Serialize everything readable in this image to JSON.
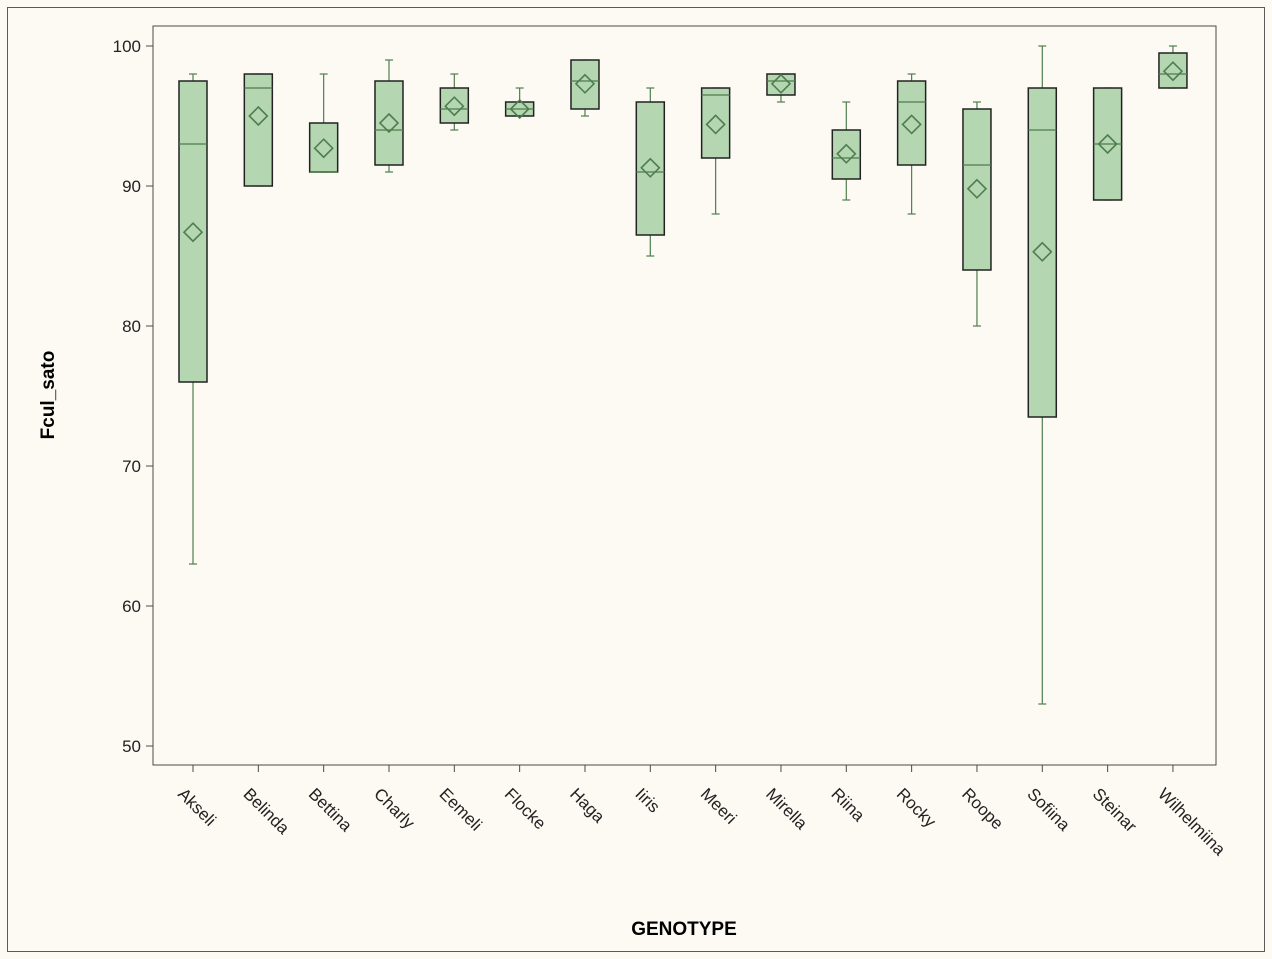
{
  "chart_data": {
    "type": "box",
    "xlabel": "GENOTYPE",
    "ylabel": "Fcul_sato",
    "ylim": [
      50,
      100
    ],
    "y_ticks": [
      "50",
      "60",
      "70",
      "80",
      "90",
      "100"
    ],
    "grid": false,
    "legend": "none",
    "colors": {
      "box_fill": "#b4d6b1",
      "box_stroke": "#222222",
      "whisker": "#4e7e4e",
      "mean_marker": "#4e7e4e",
      "background": "#fdfaf3"
    },
    "categories": [
      "Akseli",
      "Belinda",
      "Bettina",
      "Charly",
      "Eemeli",
      "Flocke",
      "Haga",
      "Iiris",
      "Meeri",
      "Mirella",
      "Riina",
      "Rocky",
      "Roope",
      "Sofiina",
      "Steinar",
      "Wilhelmiina"
    ],
    "boxes": [
      {
        "min": 63,
        "q1": 76,
        "median": 93,
        "q3": 97.5,
        "max": 98,
        "mean": 86.7
      },
      {
        "min": 90,
        "q1": 90,
        "median": 97,
        "q3": 98,
        "max": 98,
        "mean": 95
      },
      {
        "min": 91,
        "q1": 91,
        "median": 91,
        "q3": 94.5,
        "max": 98,
        "mean": 92.7
      },
      {
        "min": 91,
        "q1": 91.5,
        "median": 94,
        "q3": 97.5,
        "max": 99,
        "mean": 94.5
      },
      {
        "min": 94,
        "q1": 94.5,
        "median": 95.5,
        "q3": 97,
        "max": 98,
        "mean": 95.7
      },
      {
        "min": 95,
        "q1": 95,
        "median": 95.5,
        "q3": 96,
        "max": 97,
        "mean": 95.5
      },
      {
        "min": 95,
        "q1": 95.5,
        "median": 97.5,
        "q3": 99,
        "max": 99,
        "mean": 97.3
      },
      {
        "min": 85,
        "q1": 86.5,
        "median": 91,
        "q3": 96,
        "max": 97,
        "mean": 91.3
      },
      {
        "min": 88,
        "q1": 92,
        "median": 96.5,
        "q3": 97,
        "max": 97,
        "mean": 94.4
      },
      {
        "min": 96,
        "q1": 96.5,
        "median": 97.5,
        "q3": 98,
        "max": 98,
        "mean": 97.3
      },
      {
        "min": 89,
        "q1": 90.5,
        "median": 92,
        "q3": 94,
        "max": 96,
        "mean": 92.3
      },
      {
        "min": 88,
        "q1": 91.5,
        "median": 96,
        "q3": 97.5,
        "max": 98,
        "mean": 94.4
      },
      {
        "min": 80,
        "q1": 84,
        "median": 91.5,
        "q3": 95.5,
        "max": 96,
        "mean": 89.8
      },
      {
        "min": 53,
        "q1": 73.5,
        "median": 94,
        "q3": 97,
        "max": 100,
        "mean": 85.3
      },
      {
        "min": 89,
        "q1": 89,
        "median": 93,
        "q3": 97,
        "max": 97,
        "mean": 93
      },
      {
        "min": 97,
        "q1": 97,
        "median": 98,
        "q3": 99.5,
        "max": 100,
        "mean": 98.2
      }
    ]
  }
}
